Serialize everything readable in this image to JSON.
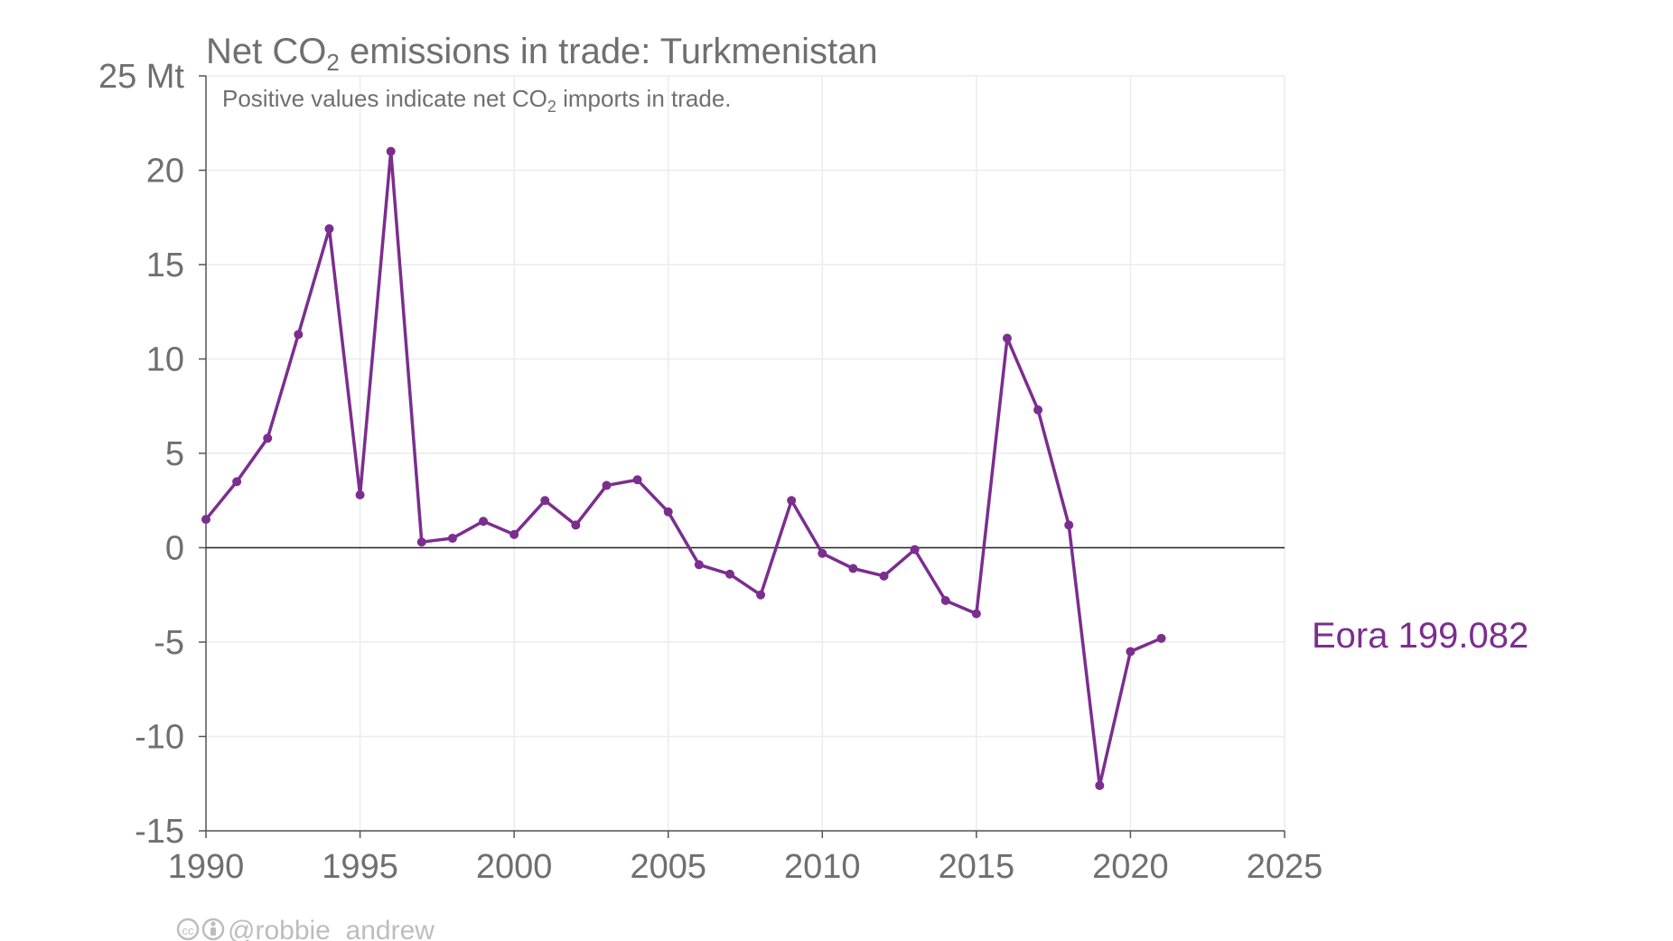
{
  "chart_data": {
    "type": "line",
    "title_main": "Net CO",
    "title_sub": "2",
    "title_rest": " emissions in trade: Turkmenistan",
    "subtitle_main": "Positive values indicate net CO",
    "subtitle_sub": "2",
    "subtitle_rest": " imports in trade.",
    "y_unit": "Mt",
    "xlim": [
      1990,
      2025
    ],
    "ylim": [
      -15,
      25
    ],
    "x_ticks": [
      1990,
      1995,
      2000,
      2005,
      2010,
      2015,
      2020,
      2025
    ],
    "y_ticks": [
      -15,
      -10,
      -5,
      0,
      5,
      10,
      15,
      20,
      25
    ],
    "y_tick_labels": [
      "-15",
      "-10",
      "-5",
      "0",
      "5",
      "10",
      "15",
      "20",
      "25 Mt"
    ],
    "grid": true,
    "series": [
      {
        "label": "Eora 199.082",
        "color": "#7b2e8e",
        "x": [
          1990,
          1991,
          1992,
          1993,
          1994,
          1995,
          1996,
          1997,
          1998,
          1999,
          2000,
          2001,
          2002,
          2003,
          2004,
          2005,
          2006,
          2007,
          2008,
          2009,
          2010,
          2011,
          2012,
          2013,
          2014,
          2015,
          2016,
          2017,
          2018,
          2019,
          2020,
          2021
        ],
        "y": [
          1.5,
          3.5,
          5.8,
          11.3,
          16.9,
          2.8,
          21.0,
          0.3,
          0.5,
          1.4,
          0.7,
          2.5,
          1.2,
          3.3,
          3.6,
          1.9,
          -0.9,
          -1.4,
          -2.5,
          2.5,
          -0.3,
          -1.1,
          -1.5,
          -0.1,
          -2.8,
          -3.5,
          11.1,
          7.3,
          1.2,
          -12.6,
          -5.5,
          -4.8
        ]
      }
    ],
    "credit": "@robbie_andrew"
  }
}
